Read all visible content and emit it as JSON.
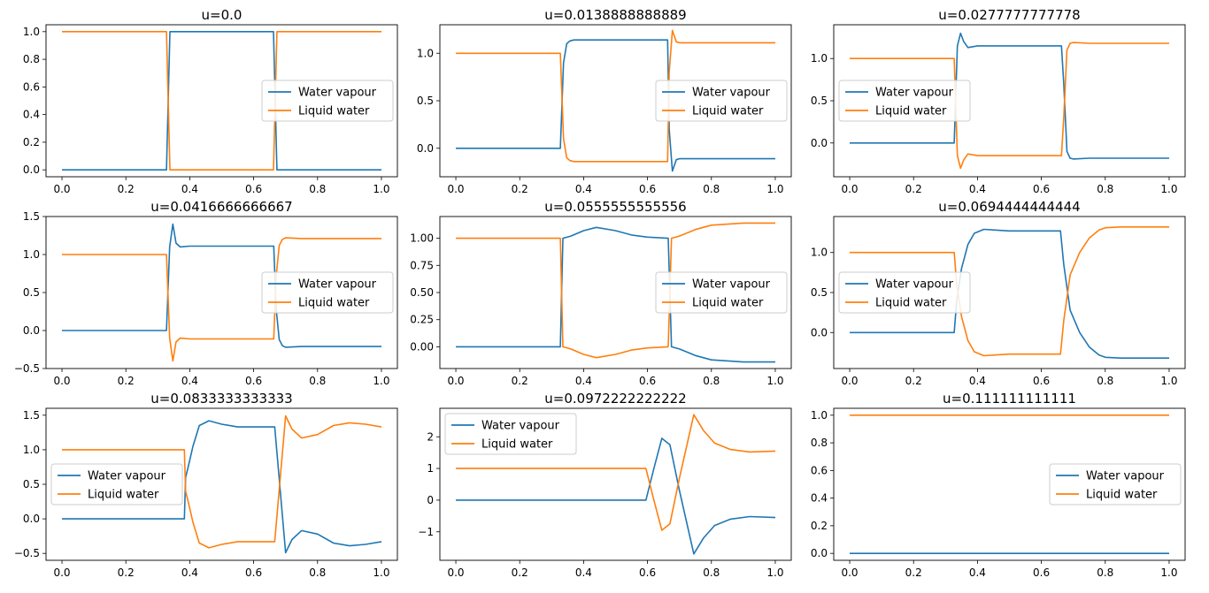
{
  "colors": {
    "water_vapour": "#1f77b4",
    "liquid_water": "#ff7f0e"
  },
  "chart_data": [
    {
      "type": "line",
      "title": "u=0.0",
      "xlim": [
        -0.05,
        1.05
      ],
      "ylim": [
        -0.05,
        1.05
      ],
      "xticks": [
        0.0,
        0.2,
        0.4,
        0.6,
        0.8,
        1.0
      ],
      "xtick_labels": [
        "0.0",
        "0.2",
        "0.4",
        "0.6",
        "0.8",
        "1.0"
      ],
      "yticks": [
        0.0,
        0.2,
        0.4,
        0.6,
        0.8,
        1.0
      ],
      "ytick_labels": [
        "0.0",
        "0.2",
        "0.4",
        "0.6",
        "0.8",
        "1.0"
      ],
      "legend": "center-right",
      "series": [
        {
          "name": "Water vapour",
          "color": "#1f77b4",
          "x": [
            0.0,
            0.327,
            0.338,
            0.662,
            0.673,
            1.0
          ],
          "y": [
            0.0,
            0.0,
            1.0,
            1.0,
            0.0,
            0.0
          ]
        },
        {
          "name": "Liquid water",
          "color": "#ff7f0e",
          "x": [
            0.0,
            0.327,
            0.338,
            0.662,
            0.673,
            1.0
          ],
          "y": [
            1.0,
            1.0,
            0.0,
            0.0,
            1.0,
            1.0
          ]
        }
      ]
    },
    {
      "type": "line",
      "title": "u=0.0138888888889",
      "xlim": [
        -0.05,
        1.05
      ],
      "ylim": [
        -0.3,
        1.3
      ],
      "xticks": [
        0.0,
        0.2,
        0.4,
        0.6,
        0.8,
        1.0
      ],
      "xtick_labels": [
        "0.0",
        "0.2",
        "0.4",
        "0.6",
        "0.8",
        "1.0"
      ],
      "yticks": [
        0.0,
        0.5,
        1.0
      ],
      "ytick_labels": [
        "0.0",
        "0.5",
        "1.0"
      ],
      "legend": "center-right",
      "series": [
        {
          "name": "Water vapour",
          "color": "#1f77b4",
          "x": [
            0.0,
            0.327,
            0.337,
            0.347,
            0.357,
            0.37,
            0.4,
            0.5,
            0.6,
            0.663,
            0.668,
            0.678,
            0.69,
            0.7,
            0.8,
            0.9,
            1.0
          ],
          "y": [
            0.0,
            0.0,
            0.9,
            1.1,
            1.13,
            1.14,
            1.14,
            1.14,
            1.14,
            1.14,
            0.2,
            -0.24,
            -0.12,
            -0.11,
            -0.11,
            -0.11,
            -0.11
          ]
        },
        {
          "name": "Liquid water",
          "color": "#ff7f0e",
          "x": [
            0.0,
            0.327,
            0.337,
            0.347,
            0.357,
            0.37,
            0.4,
            0.5,
            0.6,
            0.663,
            0.668,
            0.678,
            0.69,
            0.7,
            0.8,
            0.9,
            1.0
          ],
          "y": [
            1.0,
            1.0,
            0.1,
            -0.1,
            -0.13,
            -0.14,
            -0.14,
            -0.14,
            -0.14,
            -0.14,
            0.8,
            1.24,
            1.12,
            1.11,
            1.11,
            1.11,
            1.11
          ]
        }
      ]
    },
    {
      "type": "line",
      "title": "u=0.0277777777778",
      "xlim": [
        -0.05,
        1.05
      ],
      "ylim": [
        -0.4,
        1.4
      ],
      "xticks": [
        0.0,
        0.2,
        0.4,
        0.6,
        0.8,
        1.0
      ],
      "xtick_labels": [
        "0.0",
        "0.2",
        "0.4",
        "0.6",
        "0.8",
        "1.0"
      ],
      "yticks": [
        0.0,
        0.5,
        1.0
      ],
      "ytick_labels": [
        "0.0",
        "0.5",
        "1.0"
      ],
      "legend": "center-left",
      "series": [
        {
          "name": "Water vapour",
          "color": "#1f77b4",
          "x": [
            0.0,
            0.327,
            0.337,
            0.347,
            0.357,
            0.37,
            0.4,
            0.5,
            0.6,
            0.663,
            0.67,
            0.68,
            0.69,
            0.7,
            0.75,
            0.8,
            0.9,
            1.0
          ],
          "y": [
            0.0,
            0.0,
            1.15,
            1.3,
            1.2,
            1.13,
            1.15,
            1.15,
            1.15,
            1.15,
            0.7,
            -0.1,
            -0.18,
            -0.19,
            -0.18,
            -0.18,
            -0.18,
            -0.18
          ]
        },
        {
          "name": "Liquid water",
          "color": "#ff7f0e",
          "x": [
            0.0,
            0.327,
            0.337,
            0.347,
            0.357,
            0.37,
            0.4,
            0.5,
            0.6,
            0.663,
            0.67,
            0.68,
            0.69,
            0.7,
            0.75,
            0.8,
            0.9,
            1.0
          ],
          "y": [
            1.0,
            1.0,
            -0.15,
            -0.3,
            -0.2,
            -0.13,
            -0.15,
            -0.15,
            -0.15,
            -0.15,
            0.3,
            1.1,
            1.18,
            1.19,
            1.18,
            1.18,
            1.18,
            1.18
          ]
        }
      ]
    },
    {
      "type": "line",
      "title": "u=0.0416666666667",
      "xlim": [
        -0.05,
        1.05
      ],
      "ylim": [
        -0.5,
        1.5
      ],
      "xticks": [
        0.0,
        0.2,
        0.4,
        0.6,
        0.8,
        1.0
      ],
      "xtick_labels": [
        "0.0",
        "0.2",
        "0.4",
        "0.6",
        "0.8",
        "1.0"
      ],
      "yticks": [
        -0.5,
        0.0,
        0.5,
        1.0,
        1.5
      ],
      "ytick_labels": [
        "−0.5",
        "0.0",
        "0.5",
        "1.0",
        "1.5"
      ],
      "legend": "center-right",
      "series": [
        {
          "name": "Water vapour",
          "color": "#1f77b4",
          "x": [
            0.0,
            0.327,
            0.337,
            0.347,
            0.357,
            0.37,
            0.4,
            0.5,
            0.6,
            0.663,
            0.67,
            0.68,
            0.69,
            0.7,
            0.75,
            0.8,
            0.9,
            1.0
          ],
          "y": [
            0.0,
            0.0,
            1.1,
            1.4,
            1.15,
            1.1,
            1.11,
            1.11,
            1.11,
            1.11,
            0.3,
            -0.12,
            -0.2,
            -0.22,
            -0.21,
            -0.21,
            -0.21,
            -0.21
          ]
        },
        {
          "name": "Liquid water",
          "color": "#ff7f0e",
          "x": [
            0.0,
            0.327,
            0.337,
            0.347,
            0.357,
            0.37,
            0.4,
            0.5,
            0.6,
            0.663,
            0.67,
            0.68,
            0.69,
            0.7,
            0.75,
            0.8,
            0.9,
            1.0
          ],
          "y": [
            1.0,
            1.0,
            -0.1,
            -0.4,
            -0.15,
            -0.1,
            -0.11,
            -0.11,
            -0.11,
            -0.11,
            0.7,
            1.12,
            1.2,
            1.22,
            1.21,
            1.21,
            1.21,
            1.21
          ]
        }
      ]
    },
    {
      "type": "line",
      "title": "u=0.0555555555556",
      "xlim": [
        -0.05,
        1.05
      ],
      "ylim": [
        -0.2,
        1.2
      ],
      "xticks": [
        0.0,
        0.2,
        0.4,
        0.6,
        0.8,
        1.0
      ],
      "xtick_labels": [
        "0.0",
        "0.2",
        "0.4",
        "0.6",
        "0.8",
        "1.0"
      ],
      "yticks": [
        0.0,
        0.25,
        0.5,
        0.75,
        1.0
      ],
      "ytick_labels": [
        "0.00",
        "0.25",
        "0.50",
        "0.75",
        "1.00"
      ],
      "legend": "center-right",
      "series": [
        {
          "name": "Water vapour",
          "color": "#1f77b4",
          "x": [
            0.0,
            0.327,
            0.335,
            0.36,
            0.4,
            0.44,
            0.5,
            0.55,
            0.6,
            0.665,
            0.675,
            0.7,
            0.75,
            0.8,
            0.9,
            1.0
          ],
          "y": [
            0.0,
            0.0,
            1.0,
            1.02,
            1.07,
            1.1,
            1.07,
            1.03,
            1.01,
            1.0,
            0.0,
            -0.02,
            -0.08,
            -0.12,
            -0.14,
            -0.14
          ]
        },
        {
          "name": "Liquid water",
          "color": "#ff7f0e",
          "x": [
            0.0,
            0.327,
            0.335,
            0.36,
            0.4,
            0.44,
            0.5,
            0.55,
            0.6,
            0.665,
            0.675,
            0.7,
            0.75,
            0.8,
            0.9,
            1.0
          ],
          "y": [
            1.0,
            1.0,
            0.0,
            -0.02,
            -0.07,
            -0.1,
            -0.07,
            -0.03,
            -0.01,
            0.0,
            1.0,
            1.02,
            1.08,
            1.12,
            1.14,
            1.14
          ]
        }
      ]
    },
    {
      "type": "line",
      "title": "u=0.0694444444444",
      "xlim": [
        -0.05,
        1.05
      ],
      "ylim": [
        -0.45,
        1.45
      ],
      "xticks": [
        0.0,
        0.2,
        0.4,
        0.6,
        0.8,
        1.0
      ],
      "xtick_labels": [
        "0.0",
        "0.2",
        "0.4",
        "0.6",
        "0.8",
        "1.0"
      ],
      "yticks": [
        0.0,
        0.5,
        1.0
      ],
      "ytick_labels": [
        "0.0",
        "0.5",
        "1.0"
      ],
      "legend": "center-left",
      "series": [
        {
          "name": "Water vapour",
          "color": "#1f77b4",
          "x": [
            0.0,
            0.327,
            0.335,
            0.35,
            0.37,
            0.39,
            0.42,
            0.46,
            0.5,
            0.6,
            0.66,
            0.67,
            0.69,
            0.72,
            0.75,
            0.78,
            0.8,
            0.85,
            0.9,
            1.0
          ],
          "y": [
            0.0,
            0.0,
            0.4,
            0.8,
            1.1,
            1.24,
            1.29,
            1.28,
            1.27,
            1.27,
            1.27,
            0.85,
            0.28,
            0.0,
            -0.18,
            -0.28,
            -0.31,
            -0.32,
            -0.32,
            -0.32
          ]
        },
        {
          "name": "Liquid water",
          "color": "#ff7f0e",
          "x": [
            0.0,
            0.327,
            0.335,
            0.35,
            0.37,
            0.39,
            0.42,
            0.46,
            0.5,
            0.6,
            0.66,
            0.67,
            0.69,
            0.72,
            0.75,
            0.78,
            0.8,
            0.85,
            0.9,
            1.0
          ],
          "y": [
            1.0,
            1.0,
            0.6,
            0.2,
            -0.1,
            -0.24,
            -0.29,
            -0.28,
            -0.27,
            -0.27,
            -0.27,
            0.15,
            0.72,
            1.0,
            1.18,
            1.28,
            1.31,
            1.32,
            1.32,
            1.32
          ]
        }
      ]
    },
    {
      "type": "line",
      "title": "u=0.0833333333333",
      "xlim": [
        -0.05,
        1.05
      ],
      "ylim": [
        -0.6,
        1.6
      ],
      "xticks": [
        0.0,
        0.2,
        0.4,
        0.6,
        0.8,
        1.0
      ],
      "xtick_labels": [
        "0.0",
        "0.2",
        "0.4",
        "0.6",
        "0.8",
        "1.0"
      ],
      "yticks": [
        -0.5,
        0.0,
        0.5,
        1.0,
        1.5
      ],
      "ytick_labels": [
        "−0.5",
        "0.0",
        "0.5",
        "1.0",
        "1.5"
      ],
      "legend": "center-left",
      "series": [
        {
          "name": "Water vapour",
          "color": "#1f77b4",
          "x": [
            0.0,
            0.383,
            0.387,
            0.395,
            0.41,
            0.43,
            0.46,
            0.5,
            0.55,
            0.6,
            0.666,
            0.7,
            0.72,
            0.75,
            0.8,
            0.85,
            0.9,
            0.95,
            1.0
          ],
          "y": [
            0.0,
            0.0,
            0.6,
            0.75,
            1.05,
            1.35,
            1.42,
            1.37,
            1.33,
            1.33,
            1.33,
            -0.49,
            -0.3,
            -0.17,
            -0.22,
            -0.35,
            -0.39,
            -0.37,
            -0.33
          ]
        },
        {
          "name": "Liquid water",
          "color": "#ff7f0e",
          "x": [
            0.0,
            0.383,
            0.387,
            0.395,
            0.41,
            0.43,
            0.46,
            0.5,
            0.55,
            0.6,
            0.666,
            0.7,
            0.72,
            0.75,
            0.8,
            0.85,
            0.9,
            0.95,
            1.0
          ],
          "y": [
            1.0,
            1.0,
            0.4,
            0.25,
            -0.05,
            -0.35,
            -0.42,
            -0.37,
            -0.33,
            -0.33,
            -0.33,
            1.49,
            1.3,
            1.17,
            1.22,
            1.35,
            1.39,
            1.37,
            1.33
          ]
        }
      ]
    },
    {
      "type": "line",
      "title": "u=0.0972222222222",
      "xlim": [
        -0.05,
        1.05
      ],
      "ylim": [
        -1.9,
        2.9
      ],
      "xticks": [
        0.0,
        0.2,
        0.4,
        0.6,
        0.8,
        1.0
      ],
      "xtick_labels": [
        "0.0",
        "0.2",
        "0.4",
        "0.6",
        "0.8",
        "1.0"
      ],
      "yticks": [
        -1.0,
        0.0,
        1.0,
        2.0
      ],
      "ytick_labels": [
        "−1",
        "0",
        "1",
        "2"
      ],
      "legend": "upper-left",
      "series": [
        {
          "name": "Water vapour",
          "color": "#1f77b4",
          "x": [
            0.0,
            0.595,
            0.62,
            0.645,
            0.67,
            0.7,
            0.745,
            0.775,
            0.81,
            0.86,
            0.92,
            1.0
          ],
          "y": [
            0.0,
            0.0,
            1.0,
            1.95,
            1.75,
            0.3,
            -1.7,
            -1.2,
            -0.8,
            -0.6,
            -0.52,
            -0.55
          ]
        },
        {
          "name": "Liquid water",
          "color": "#ff7f0e",
          "x": [
            0.0,
            0.595,
            0.62,
            0.645,
            0.67,
            0.7,
            0.745,
            0.775,
            0.81,
            0.86,
            0.92,
            1.0
          ],
          "y": [
            1.0,
            1.0,
            0.0,
            -0.95,
            -0.75,
            0.7,
            2.7,
            2.2,
            1.8,
            1.6,
            1.52,
            1.55
          ]
        }
      ]
    },
    {
      "type": "line",
      "title": "u=0.111111111111",
      "xlim": [
        -0.05,
        1.05
      ],
      "ylim": [
        -0.05,
        1.05
      ],
      "xticks": [
        0.0,
        0.2,
        0.4,
        0.6,
        0.8,
        1.0
      ],
      "xtick_labels": [
        "0.0",
        "0.2",
        "0.4",
        "0.6",
        "0.8",
        "1.0"
      ],
      "yticks": [
        0.0,
        0.2,
        0.4,
        0.6,
        0.8,
        1.0
      ],
      "ytick_labels": [
        "0.0",
        "0.2",
        "0.4",
        "0.6",
        "0.8",
        "1.0"
      ],
      "legend": "center-right",
      "series": [
        {
          "name": "Water vapour",
          "color": "#1f77b4",
          "x": [
            0.0,
            1.0
          ],
          "y": [
            0.0,
            0.0
          ]
        },
        {
          "name": "Liquid water",
          "color": "#ff7f0e",
          "x": [
            0.0,
            1.0
          ],
          "y": [
            1.0,
            1.0
          ]
        }
      ]
    }
  ]
}
